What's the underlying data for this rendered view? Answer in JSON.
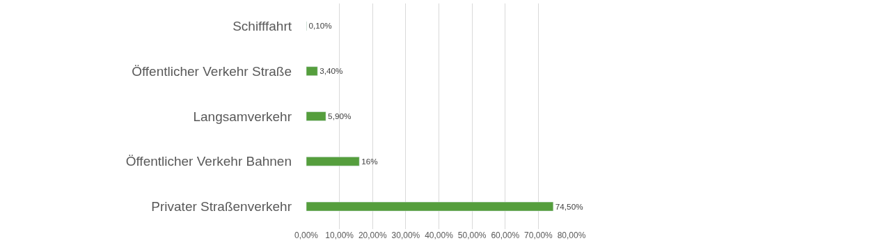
{
  "chart_data": {
    "type": "bar",
    "orientation": "horizontal",
    "categories": [
      "Schifffahrt",
      "Öffentlicher Verkehr Straße",
      "Langsamverkehr",
      "Öffentlicher Verkehr Bahnen",
      "Privater Straßenverkehr"
    ],
    "values": [
      0.1,
      3.4,
      5.9,
      16,
      74.5
    ],
    "value_labels": [
      "0,10%",
      "3,40%",
      "5,90%",
      "16%",
      "74,50%"
    ],
    "color": "#559e3d",
    "xlim": [
      0,
      80
    ],
    "xticks": [
      {
        "value": 0,
        "label": "0,00%"
      },
      {
        "value": 10,
        "label": "10,00%"
      },
      {
        "value": 20,
        "label": "20,00%"
      },
      {
        "value": 30,
        "label": "30,00%"
      },
      {
        "value": 40,
        "label": "40,00%"
      },
      {
        "value": 50,
        "label": "50,00%"
      },
      {
        "value": 60,
        "label": "60,00%"
      },
      {
        "value": 70,
        "label": "70,00%"
      },
      {
        "value": 80,
        "label": "80,00%"
      }
    ],
    "grid": "x",
    "legend": false
  }
}
